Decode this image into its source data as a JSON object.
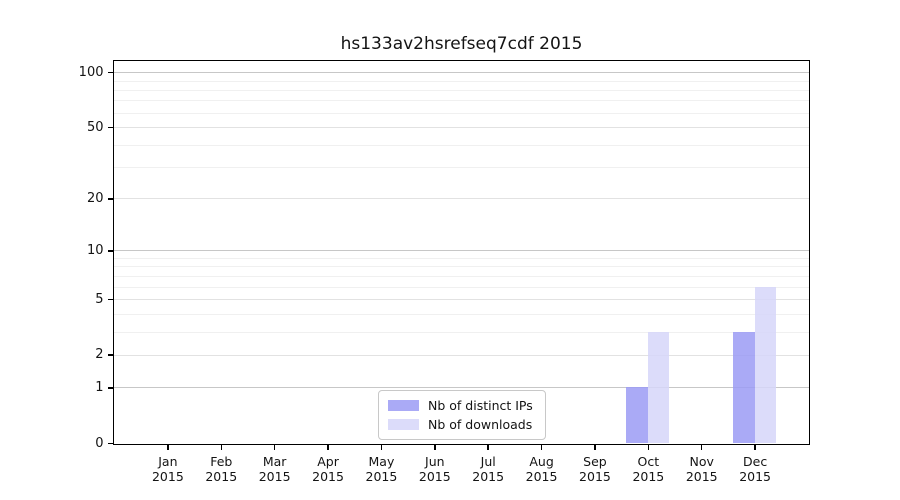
{
  "chart_data": {
    "type": "bar",
    "title": "hs133av2hsrefseq7cdf 2015",
    "categories": [
      "Jan 2015",
      "Feb 2015",
      "Mar 2015",
      "Apr 2015",
      "May 2015",
      "Jun 2015",
      "Jul 2015",
      "Aug 2015",
      "Sep 2015",
      "Oct 2015",
      "Nov 2015",
      "Dec 2015"
    ],
    "x_tick_months": [
      "Jan",
      "Feb",
      "Mar",
      "Apr",
      "May",
      "Jun",
      "Jul",
      "Aug",
      "Sep",
      "Oct",
      "Nov",
      "Dec"
    ],
    "x_tick_year": "2015",
    "series": [
      {
        "name": "Nb of distinct IPs",
        "color": "#9b9bf5",
        "values": [
          0,
          0,
          0,
          0,
          0,
          0,
          0,
          0,
          0,
          1,
          0,
          3
        ]
      },
      {
        "name": "Nb of downloads",
        "color": "#d6d6f9",
        "values": [
          0,
          0,
          0,
          0,
          0,
          0,
          0,
          0,
          0,
          3,
          0,
          6
        ]
      }
    ],
    "y_ticks": [
      0,
      1,
      2,
      5,
      10,
      20,
      50,
      100
    ],
    "y_major_dark_ticks": [
      1,
      10,
      100
    ],
    "y_minor_gridlines": [
      3,
      4,
      6,
      7,
      8,
      9,
      30,
      40,
      60,
      70,
      80,
      90
    ],
    "scale": "log1p",
    "ylim": [
      0,
      115
    ],
    "grid": true,
    "legend_position": "inside-bottom-center"
  },
  "colors": {
    "bar_distinct_ips": "#a9a9f5",
    "bar_downloads": "#dcdcf9",
    "axis": "#000000",
    "grid_major_dark": "#c7c7c7",
    "grid_major_light": "#e2e2e2",
    "grid_minor": "#f0f0f0",
    "legend_border": "#c8c8c8",
    "background": "#ffffff"
  }
}
